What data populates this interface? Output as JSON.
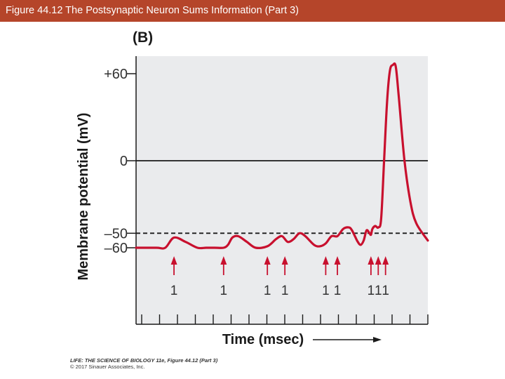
{
  "header": {
    "title": "Figure 44.12  The Postsynaptic Neuron Sums Information (Part 3)"
  },
  "chart_data": {
    "type": "line",
    "panel_label": "(B)",
    "ylabel": "Membrane potential (mV)",
    "xlabel": "Time (msec)",
    "ylim": [
      -110,
      70
    ],
    "xlim": [
      0,
      100
    ],
    "y_ticks": [
      {
        "value": 60,
        "label": "+60"
      },
      {
        "value": 0,
        "label": "0"
      },
      {
        "value": -50,
        "label": "–50"
      },
      {
        "value": -60,
        "label": "–60"
      }
    ],
    "reference_lines": [
      {
        "value": 0,
        "style": "solid",
        "name": "zero"
      },
      {
        "value": -50,
        "style": "dashed",
        "name": "threshold"
      }
    ],
    "series": [
      {
        "name": "membrane potential",
        "color": "#c8102e",
        "x": [
          0,
          7,
          10,
          13,
          17,
          21,
          24,
          27,
          30,
          31.5,
          33,
          35,
          38,
          41,
          45,
          48,
          50,
          52,
          54,
          56,
          58,
          61,
          63,
          65,
          67,
          69,
          71,
          73,
          74,
          75,
          76,
          77,
          78,
          79,
          80,
          80.5,
          81,
          82,
          83,
          84,
          85,
          86,
          87,
          88,
          89,
          90,
          92,
          94,
          96,
          100
        ],
        "values": [
          -60,
          -60,
          -60,
          -53,
          -56,
          -60,
          -60,
          -60,
          -60,
          -58,
          -53,
          -52,
          -56,
          -60,
          -59,
          -54,
          -52,
          -56,
          -54,
          -50,
          -52,
          -58,
          -59,
          -57,
          -52,
          -52,
          -47,
          -46,
          -48,
          -52,
          -56,
          -58,
          -55,
          -48,
          -50,
          -51,
          -47,
          -45,
          -46,
          -40,
          0,
          40,
          62,
          66,
          65,
          45,
          0,
          -28,
          -43,
          -55
        ]
      }
    ],
    "stimuli": [
      {
        "x": 13,
        "label": "1"
      },
      {
        "x": 30,
        "label": "1"
      },
      {
        "x": 45,
        "label": "1"
      },
      {
        "x": 51,
        "label": "1"
      },
      {
        "x": 65,
        "label": "1"
      },
      {
        "x": 69,
        "label": "1"
      },
      {
        "x": 80.5,
        "label": "1"
      },
      {
        "x": 83,
        "label": "1"
      },
      {
        "x": 85.5,
        "label": "1"
      }
    ],
    "stimulus_color": "#c8102e",
    "plot_bg": "#eaebed",
    "x_tick_count": 17
  },
  "credit": {
    "line1": "LIFE: THE SCIENCE OF BIOLOGY 11e, Figure 44.12 (Part 3)",
    "line2": "© 2017 Sinauer Associates, Inc."
  }
}
